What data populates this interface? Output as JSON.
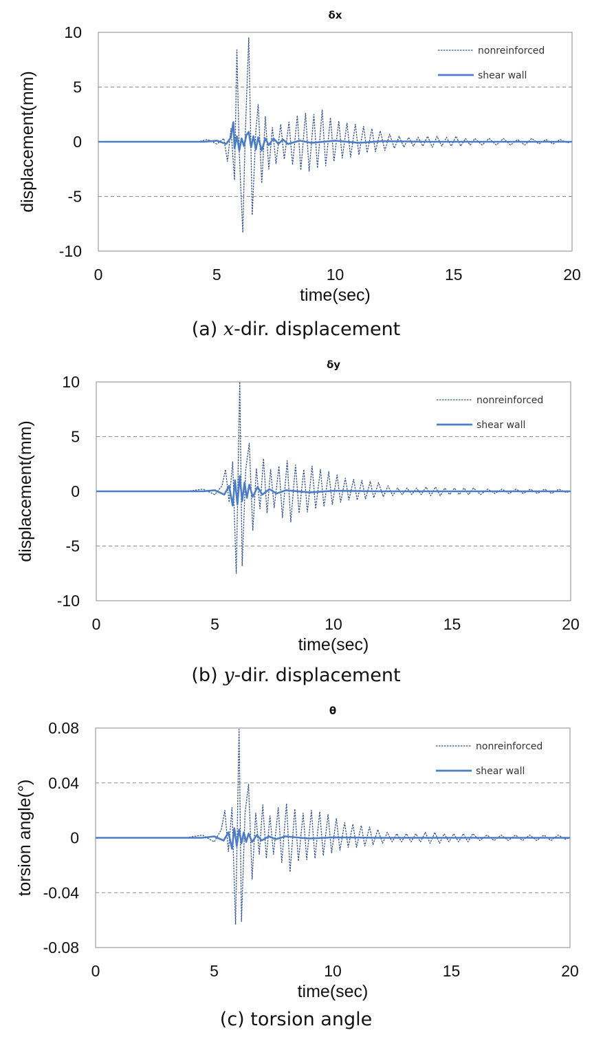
{
  "chart_data": [
    {
      "type": "line",
      "title": "δx",
      "xlabel": "time(sec)",
      "ylabel": "displacement(mm)",
      "xlim": [
        0,
        20
      ],
      "ylim": [
        -10,
        10
      ],
      "xticks": [
        "0",
        "5",
        "10",
        "15",
        "20"
      ],
      "yticks": [
        "10",
        "5",
        "0",
        "-5",
        "-10"
      ],
      "ytick_values": [
        10,
        5,
        0,
        -5,
        -10
      ],
      "grid": "horizontal dashed at 5 and -5",
      "legend_position": "top-right",
      "series": [
        {
          "name": "nonreinforced",
          "style": "dashed",
          "color": "#2f4f8f",
          "x": [
            0,
            4.2,
            4.6,
            5.0,
            5.3,
            5.45,
            5.6,
            5.75,
            5.85,
            5.95,
            6.1,
            6.2,
            6.35,
            6.5,
            6.65,
            6.75,
            6.9,
            7.05,
            7.2,
            7.35,
            7.5,
            7.7,
            7.85,
            8.05,
            8.2,
            8.4,
            8.55,
            8.75,
            8.9,
            9.1,
            9.25,
            9.45,
            9.6,
            9.8,
            9.95,
            10.15,
            10.3,
            10.5,
            10.65,
            10.85,
            11.0,
            11.2,
            11.35,
            11.55,
            11.7,
            11.9,
            12.1,
            12.3,
            12.5,
            12.7,
            12.9,
            13.1,
            13.3,
            13.5,
            13.7,
            13.9,
            14.1,
            14.3,
            14.5,
            14.7,
            14.9,
            15.1,
            15.3,
            15.5,
            15.7,
            15.9,
            16.2,
            16.5,
            16.8,
            17.1,
            17.4,
            17.7,
            18.0,
            18.3,
            18.6,
            18.9,
            19.2,
            19.5,
            19.8,
            20.0
          ],
          "y": [
            0,
            0,
            0.2,
            -0.2,
            0.3,
            -1.8,
            1.2,
            -3.5,
            8.4,
            -1.0,
            -8.3,
            0.5,
            9.5,
            -6.7,
            1.0,
            3.4,
            -3.8,
            2.3,
            -2.5,
            1.3,
            -2.0,
            1.6,
            -1.6,
            1.8,
            -2.1,
            2.4,
            -2.6,
            2.6,
            -2.7,
            2.5,
            -2.4,
            2.9,
            -2.2,
            2.2,
            -1.8,
            1.9,
            -1.5,
            1.7,
            -1.4,
            1.6,
            -1.2,
            1.4,
            -1.0,
            1.2,
            -0.9,
            1.0,
            -0.8,
            0.7,
            -0.6,
            0.5,
            -0.5,
            0.4,
            -0.4,
            0.4,
            -0.4,
            0.5,
            -0.5,
            0.5,
            -0.4,
            0.4,
            -0.4,
            0.5,
            -0.4,
            0.3,
            -0.3,
            0.3,
            -0.3,
            0.3,
            -0.3,
            0.3,
            -0.3,
            0.2,
            -0.3,
            0.3,
            -0.2,
            0.2,
            -0.2,
            0.2,
            -0.1,
            0
          ]
        },
        {
          "name": "shear wall",
          "style": "solid",
          "color": "#4a7cc7",
          "x": [
            0,
            4.5,
            5.0,
            5.4,
            5.6,
            5.7,
            5.75,
            5.85,
            5.95,
            6.05,
            6.15,
            6.25,
            6.35,
            6.45,
            6.55,
            6.65,
            6.75,
            6.9,
            7.05,
            7.2,
            7.4,
            7.6,
            7.8,
            8.0,
            8.5,
            9.0,
            10.0,
            11.0,
            12.0,
            14.0,
            17.0,
            20.0
          ],
          "y": [
            0,
            0,
            0.1,
            -0.2,
            0.4,
            1.8,
            -0.6,
            0.5,
            -0.8,
            0.3,
            -0.4,
            0.6,
            0.9,
            -0.5,
            0.5,
            -0.7,
            0.4,
            -0.8,
            0.3,
            -0.3,
            0.3,
            -0.2,
            0.2,
            -0.2,
            0.1,
            -0.1,
            0.1,
            -0.1,
            0.05,
            0,
            0,
            0
          ]
        }
      ]
    },
    {
      "type": "line",
      "title": "δy",
      "xlabel": "time(sec)",
      "ylabel": "displacement(mm)",
      "xlim": [
        0,
        20
      ],
      "ylim": [
        -10,
        10
      ],
      "xticks": [
        "0",
        "5",
        "10",
        "15",
        "20"
      ],
      "yticks": [
        "10",
        "5",
        "0",
        "-5",
        "-10"
      ],
      "ytick_values": [
        10,
        5,
        0,
        -5,
        -10
      ],
      "grid": "horizontal dashed at 5 and -5",
      "legend_position": "top-right",
      "series": [
        {
          "name": "nonreinforced",
          "style": "dashed",
          "color": "#2f4f8f",
          "x": [
            0,
            3.8,
            4.5,
            5.0,
            5.3,
            5.45,
            5.6,
            5.75,
            5.9,
            6.05,
            6.15,
            6.3,
            6.45,
            6.6,
            6.75,
            6.9,
            7.05,
            7.2,
            7.35,
            7.5,
            7.7,
            7.85,
            8.05,
            8.2,
            8.4,
            8.55,
            8.75,
            8.9,
            9.1,
            9.25,
            9.45,
            9.6,
            9.8,
            9.95,
            10.15,
            10.3,
            10.5,
            10.65,
            10.85,
            11.0,
            11.2,
            11.35,
            11.55,
            11.7,
            11.9,
            12.1,
            12.3,
            12.5,
            12.7,
            12.9,
            13.1,
            13.3,
            13.5,
            13.7,
            13.9,
            14.1,
            14.3,
            14.5,
            14.7,
            14.9,
            15.1,
            15.3,
            15.5,
            15.7,
            15.9,
            16.2,
            16.5,
            16.8,
            17.1,
            17.4,
            17.7,
            18.0,
            18.3,
            18.6,
            18.9,
            19.2,
            19.5,
            19.8,
            20.0
          ],
          "y": [
            0,
            0,
            0.2,
            -0.3,
            0.5,
            2.0,
            -1.0,
            2.7,
            -7.5,
            10.0,
            -6.8,
            2.0,
            4.4,
            -3.6,
            2.1,
            -1.6,
            3.0,
            -2.0,
            2.0,
            -1.5,
            2.3,
            -2.4,
            2.8,
            -2.8,
            2.4,
            -2.0,
            2.0,
            -1.9,
            2.3,
            -1.6,
            2.0,
            -1.4,
            1.8,
            -1.2,
            1.5,
            -1.0,
            1.2,
            -0.8,
            1.1,
            -0.8,
            1.0,
            -0.7,
            0.9,
            -0.6,
            0.8,
            -0.5,
            0.5,
            -0.4,
            0.3,
            -0.3,
            0.3,
            -0.3,
            0.3,
            -0.3,
            0.4,
            -0.4,
            0.4,
            -0.4,
            0.3,
            -0.3,
            0.3,
            -0.3,
            0.3,
            -0.3,
            0.3,
            -0.3,
            0.2,
            -0.2,
            0.2,
            -0.2,
            0.2,
            -0.2,
            0.2,
            -0.2,
            0.2,
            -0.2,
            0.2,
            -0.1,
            0
          ]
        },
        {
          "name": "shear wall",
          "style": "solid",
          "color": "#4a7cc7",
          "x": [
            0,
            4.5,
            5.0,
            5.4,
            5.6,
            5.75,
            5.85,
            5.95,
            6.05,
            6.15,
            6.25,
            6.35,
            6.45,
            6.6,
            6.8,
            7.0,
            7.3,
            7.6,
            8.0,
            9.0,
            10.0,
            12.0,
            15.0,
            20.0
          ],
          "y": [
            0,
            0,
            0.1,
            -0.3,
            0.5,
            -1.3,
            1.0,
            -1.2,
            1.4,
            -0.9,
            0.8,
            -0.6,
            0.6,
            -0.5,
            0.4,
            -0.3,
            0.2,
            -0.2,
            0.1,
            -0.1,
            0.05,
            0,
            0,
            0
          ]
        }
      ]
    },
    {
      "type": "line",
      "title": "θ",
      "xlabel": "time(sec)",
      "ylabel": "torsion angle(°)",
      "xlim": [
        0,
        20
      ],
      "ylim": [
        -0.08,
        0.08
      ],
      "xticks": [
        "0",
        "5",
        "10",
        "15",
        "20"
      ],
      "yticks": [
        "0.08",
        "0.04",
        "0",
        "-0.04",
        "-0.08"
      ],
      "ytick_values": [
        0.08,
        0.04,
        0,
        -0.04,
        -0.08
      ],
      "grid": "horizontal dashed at 0.04 and -0.04",
      "legend_position": "top-right",
      "series": [
        {
          "name": "nonreinforced",
          "style": "dashed",
          "color": "#2f4f8f",
          "x": [
            0,
            3.8,
            4.5,
            5.0,
            5.3,
            5.45,
            5.6,
            5.75,
            5.9,
            6.05,
            6.15,
            6.3,
            6.45,
            6.6,
            6.75,
            6.9,
            7.05,
            7.2,
            7.35,
            7.5,
            7.7,
            7.85,
            8.05,
            8.2,
            8.4,
            8.55,
            8.75,
            8.9,
            9.1,
            9.25,
            9.45,
            9.6,
            9.8,
            9.95,
            10.15,
            10.3,
            10.5,
            10.65,
            10.85,
            11.0,
            11.2,
            11.35,
            11.55,
            11.7,
            11.9,
            12.1,
            12.3,
            12.5,
            12.7,
            12.9,
            13.1,
            13.3,
            13.5,
            13.7,
            13.9,
            14.1,
            14.3,
            14.5,
            14.7,
            14.9,
            15.1,
            15.3,
            15.5,
            15.7,
            15.9,
            16.2,
            16.5,
            16.8,
            17.1,
            17.4,
            17.7,
            18.0,
            18.3,
            18.6,
            18.9,
            19.2,
            19.5,
            19.8,
            20.0
          ],
          "y": [
            0,
            0,
            0.002,
            -0.003,
            0.006,
            0.02,
            -0.01,
            0.022,
            -0.063,
            0.079,
            -0.061,
            0.018,
            0.039,
            -0.03,
            0.018,
            -0.012,
            0.024,
            -0.015,
            0.016,
            -0.012,
            0.022,
            -0.018,
            0.025,
            -0.025,
            0.021,
            -0.017,
            0.018,
            -0.016,
            0.02,
            -0.015,
            0.019,
            -0.013,
            0.017,
            -0.011,
            0.014,
            -0.009,
            0.011,
            -0.007,
            0.01,
            -0.007,
            0.009,
            -0.006,
            0.008,
            -0.005,
            0.006,
            -0.004,
            0.004,
            -0.003,
            0.003,
            -0.003,
            0.003,
            -0.003,
            0.003,
            -0.003,
            0.004,
            -0.004,
            0.004,
            -0.004,
            0.003,
            -0.003,
            0.003,
            -0.003,
            0.003,
            -0.003,
            0.003,
            -0.002,
            0.002,
            -0.002,
            0.002,
            -0.002,
            0.002,
            -0.002,
            0.002,
            -0.002,
            0.002,
            -0.002,
            0.002,
            -0.001,
            0
          ]
        },
        {
          "name": "shear wall",
          "style": "solid",
          "color": "#4a7cc7",
          "x": [
            0,
            4.5,
            5.0,
            5.4,
            5.6,
            5.75,
            5.85,
            5.95,
            6.05,
            6.15,
            6.25,
            6.35,
            6.45,
            6.6,
            6.8,
            7.0,
            7.3,
            7.6,
            8.0,
            9.0,
            10.0,
            12.0,
            15.0,
            20.0
          ],
          "y": [
            0,
            0,
            0.001,
            -0.002,
            0.004,
            -0.008,
            0.007,
            -0.006,
            0.006,
            -0.004,
            0.004,
            -0.003,
            0.003,
            -0.003,
            0.002,
            -0.002,
            0.001,
            -0.001,
            0.001,
            -0.0005,
            0.0003,
            0,
            0,
            0
          ]
        }
      ]
    }
  ],
  "captions": {
    "a_prefix": "(a) ",
    "a_var": "x",
    "a_suffix": "-dir. displacement",
    "b_prefix": "(b) ",
    "b_var": "y",
    "b_suffix": "-dir. displacement",
    "c_text": "(c) torsion angle"
  }
}
